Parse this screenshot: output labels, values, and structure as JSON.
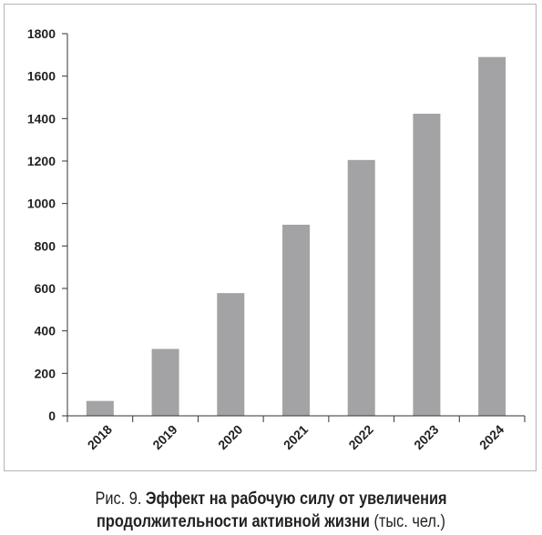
{
  "chart_data": {
    "type": "bar",
    "categories": [
      "2018",
      "2019",
      "2020",
      "2021",
      "2022",
      "2023",
      "2024"
    ],
    "values": [
      70,
      315,
      578,
      900,
      1205,
      1423,
      1690
    ],
    "ylim": [
      0,
      1800
    ],
    "yticks": [
      0,
      200,
      400,
      600,
      800,
      1000,
      1200,
      1400,
      1600,
      1800
    ],
    "ytick_labels": [
      "0",
      "200",
      "400",
      "600",
      "800",
      "1000",
      "1200",
      "1400",
      "1600",
      "1800"
    ],
    "grid": false,
    "legend": "none",
    "bar_color": "#a3a3a5",
    "xlabel": "",
    "ylabel": ""
  },
  "caption": {
    "prefix": "Рис. 9.",
    "title_line1": "Эффект на рабочую силу от увеличения",
    "title_line2": "продолжительности активной жизни",
    "units": "(тыс. чел.)"
  }
}
